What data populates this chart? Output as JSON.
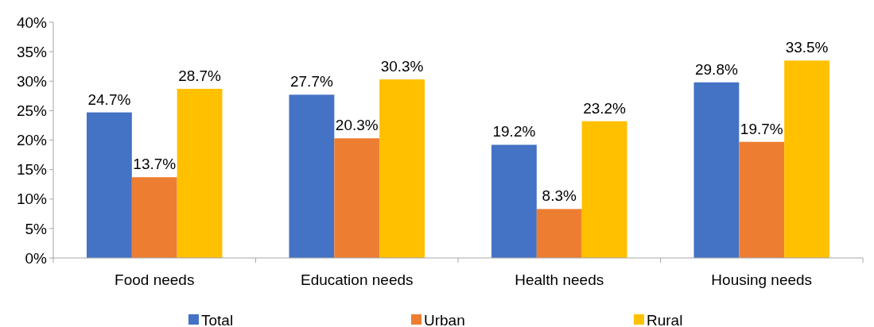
{
  "chart_data": {
    "type": "bar",
    "categories": [
      "Food needs",
      "Education needs",
      "Health needs",
      "Housing needs"
    ],
    "series": [
      {
        "name": "Total",
        "color": "#4472c4",
        "values": [
          24.7,
          27.7,
          19.2,
          29.8
        ]
      },
      {
        "name": "Urban",
        "color": "#ed7d31",
        "values": [
          13.7,
          20.3,
          8.3,
          19.7
        ]
      },
      {
        "name": "Rural",
        "color": "#ffc000",
        "values": [
          28.7,
          30.3,
          23.2,
          33.5
        ]
      }
    ],
    "ylim": [
      0,
      40
    ],
    "yticks": [
      {
        "value": 0,
        "label": "0%"
      },
      {
        "value": 5,
        "label": "5%"
      },
      {
        "value": 10,
        "label": "10%"
      },
      {
        "value": 15,
        "label": "15%"
      },
      {
        "value": 20,
        "label": "20%"
      },
      {
        "value": 25,
        "label": "25%"
      },
      {
        "value": 30,
        "label": "30%"
      },
      {
        "value": 35,
        "label": "35%"
      },
      {
        "value": 40,
        "label": "40%"
      }
    ],
    "value_labels": [
      [
        "24.7%",
        "27.7%",
        "19.2%",
        "29.8%"
      ],
      [
        "13.7%",
        "20.3%",
        "8.3%",
        "19.7%"
      ],
      [
        "28.7%",
        "30.3%",
        "23.2%",
        "33.5%"
      ]
    ],
    "legend": "bottom",
    "grid": false
  }
}
